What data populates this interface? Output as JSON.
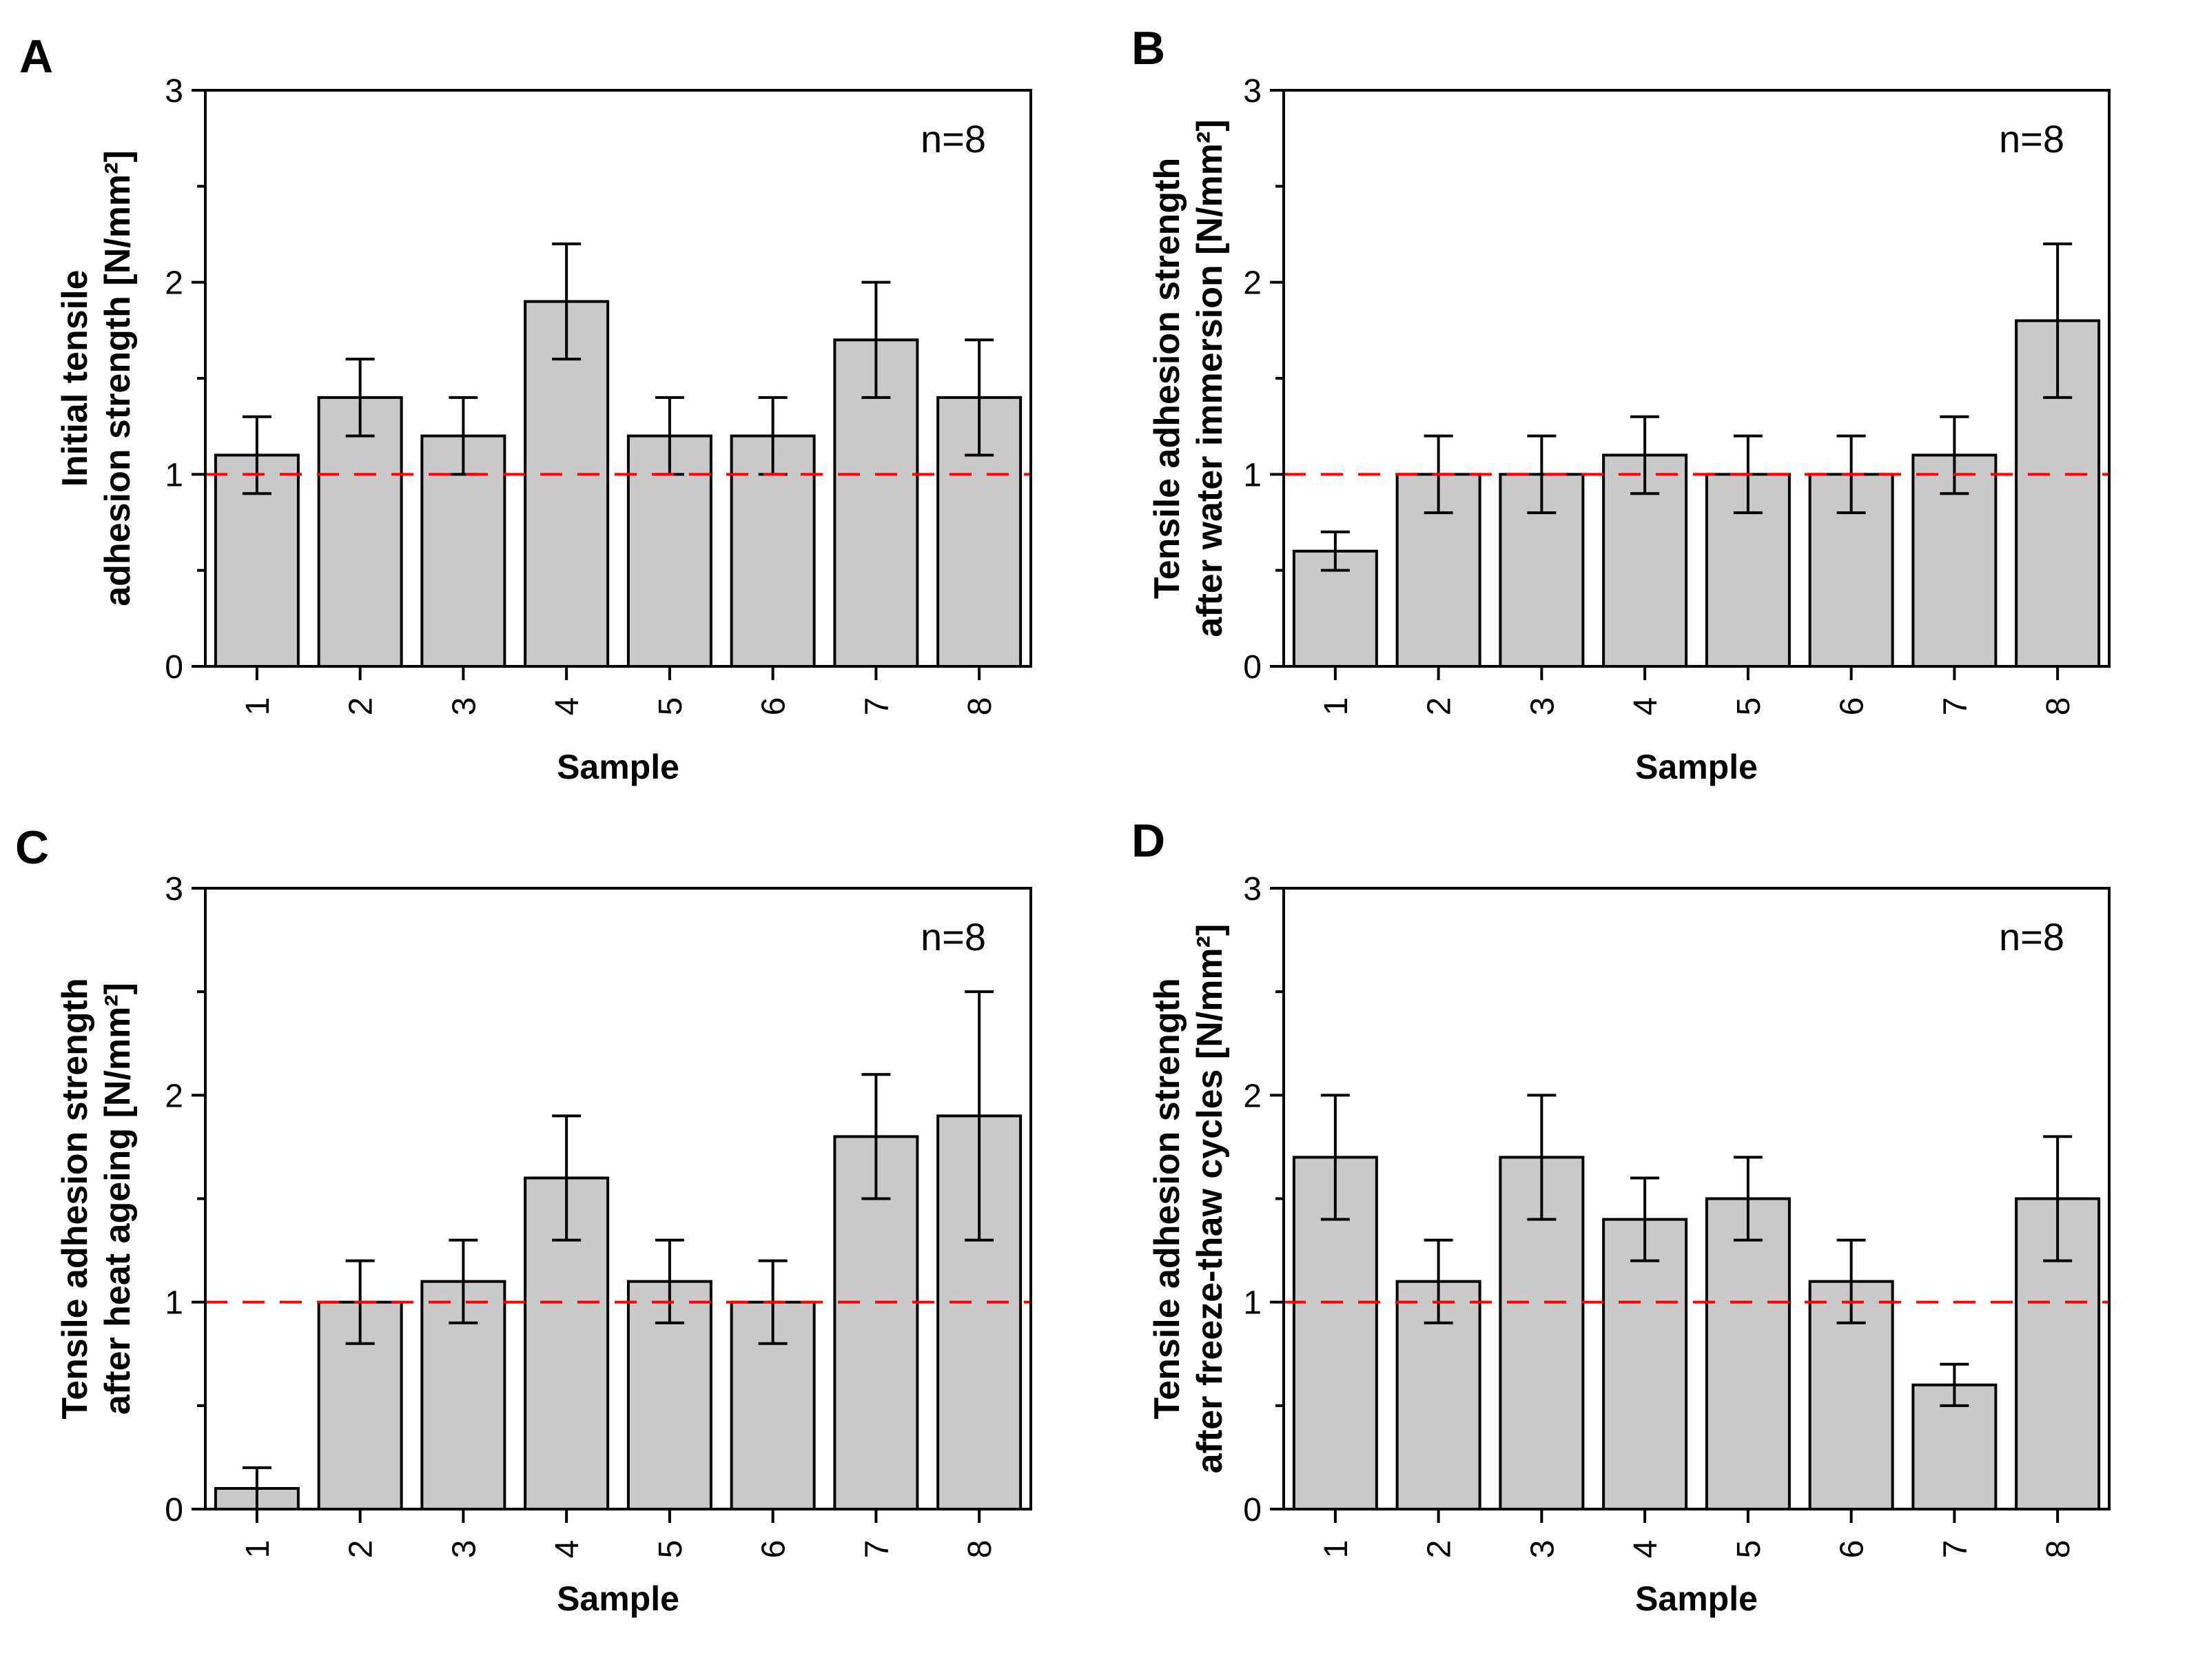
{
  "figure": {
    "background": "#FFFFFF",
    "bar_fill": "#C9C9C9",
    "bar_stroke": "#000000",
    "errorbar_color": "#000000",
    "refline_color": "#FF0000",
    "axis_color": "#000000"
  },
  "chart_data": [
    {
      "type": "bar",
      "panel_label": "A",
      "ylabel_lines": [
        "Initial tensile",
        "adhesion strength [N/mm²]"
      ],
      "xlabel": "Sample",
      "annotation": "n=8",
      "categories": [
        "1",
        "2",
        "3",
        "4",
        "5",
        "6",
        "7",
        "8"
      ],
      "values": [
        1.1,
        1.4,
        1.2,
        1.9,
        1.2,
        1.2,
        1.7,
        1.4
      ],
      "errors": [
        0.2,
        0.2,
        0.2,
        0.3,
        0.2,
        0.2,
        0.3,
        0.3
      ],
      "ylim": [
        0,
        3
      ],
      "yticks": [
        0,
        1,
        2,
        3
      ],
      "yticks_minor": [
        0.5,
        1.5,
        2.5
      ],
      "refline": 1,
      "grid": false,
      "legend": "none"
    },
    {
      "type": "bar",
      "panel_label": "B",
      "ylabel_lines": [
        "Tensile adhesion strength",
        "after water immersion [N/mm²]"
      ],
      "xlabel": "Sample",
      "annotation": "n=8",
      "categories": [
        "1",
        "2",
        "3",
        "4",
        "5",
        "6",
        "7",
        "8"
      ],
      "values": [
        0.6,
        1.0,
        1.0,
        1.1,
        1.0,
        1.0,
        1.1,
        1.8
      ],
      "errors": [
        0.1,
        0.2,
        0.2,
        0.2,
        0.2,
        0.2,
        0.2,
        0.4
      ],
      "ylim": [
        0,
        3
      ],
      "yticks": [
        0,
        1,
        2,
        3
      ],
      "yticks_minor": [
        0.5,
        1.5,
        2.5
      ],
      "refline": 1,
      "grid": false,
      "legend": "none"
    },
    {
      "type": "bar",
      "panel_label": "C",
      "ylabel_lines": [
        "Tensile adhesion strength",
        "after heat ageing [N/mm²]"
      ],
      "xlabel": "Sample",
      "annotation": "n=8",
      "categories": [
        "1",
        "2",
        "3",
        "4",
        "5",
        "6",
        "7",
        "8"
      ],
      "values": [
        0.1,
        1.0,
        1.1,
        1.6,
        1.1,
        1.0,
        1.8,
        1.9
      ],
      "errors": [
        0.1,
        0.2,
        0.2,
        0.3,
        0.2,
        0.2,
        0.3,
        0.6
      ],
      "ylim": [
        0,
        3
      ],
      "yticks": [
        0,
        1,
        2,
        3
      ],
      "yticks_minor": [
        0.5,
        1.5,
        2.5
      ],
      "refline": 1,
      "grid": false,
      "legend": "none"
    },
    {
      "type": "bar",
      "panel_label": "D",
      "ylabel_lines": [
        "Tensile adhesion strength",
        "after freeze-thaw cycles [N/mm²]"
      ],
      "xlabel": "Sample",
      "annotation": "n=8",
      "categories": [
        "1",
        "2",
        "3",
        "4",
        "5",
        "6",
        "7",
        "8"
      ],
      "values": [
        1.7,
        1.1,
        1.7,
        1.4,
        1.5,
        1.1,
        0.6,
        1.5
      ],
      "errors": [
        0.3,
        0.2,
        0.3,
        0.2,
        0.2,
        0.2,
        0.1,
        0.3
      ],
      "ylim": [
        0,
        3
      ],
      "yticks": [
        0,
        1,
        2,
        3
      ],
      "yticks_minor": [
        0.5,
        1.5,
        2.5
      ],
      "refline": 1,
      "grid": false,
      "legend": "none"
    }
  ]
}
